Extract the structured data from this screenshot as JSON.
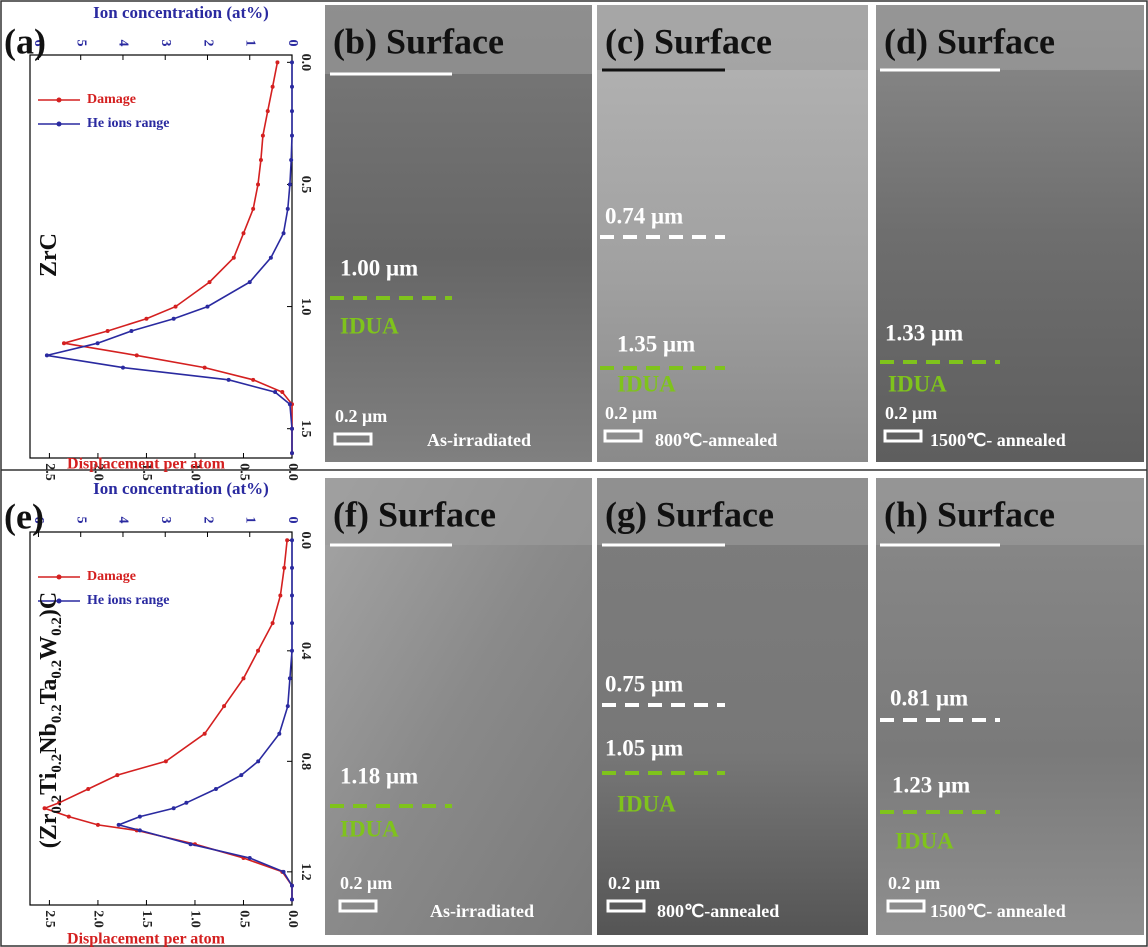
{
  "rows": [
    {
      "panel": "(a)",
      "material": [
        "ZrC"
      ]
    },
    {
      "panel": "(e)",
      "material": [
        "(Zr",
        "0.2",
        "Ti",
        "0.2",
        "Nb",
        "0.2",
        "Ta",
        "0.2",
        "W",
        "0.2",
        ")C"
      ]
    }
  ],
  "chart_data": [
    {
      "type": "line",
      "orientation": "vertical",
      "y2label": "Ion concentration (at%)",
      "ylabel": "Displacement per atom",
      "x": [
        0,
        0.1,
        0.2,
        0.3,
        0.4,
        0.5,
        0.6,
        0.7,
        0.8,
        0.9,
        1.0,
        1.05,
        1.1,
        1.15,
        1.2,
        1.25,
        1.3,
        1.35,
        1.4,
        1.5,
        1.6
      ],
      "xlim": [
        -0.03,
        1.62
      ],
      "xticks": [
        {
          "value": 0,
          "label": "0.0"
        },
        0.5,
        {
          "value": 1,
          "label": "1.0"
        },
        1.5
      ],
      "ylim": [
        2.7,
        0
      ],
      "yticks": [
        2.5,
        {
          "value": 2,
          "label": "2.0"
        },
        1.5,
        {
          "value": 1,
          "label": "1.0"
        },
        0.5,
        {
          "value": 0,
          "label": "0.0"
        }
      ],
      "y2lim": [
        6.2,
        0
      ],
      "y2ticks": [
        6,
        5,
        4,
        3,
        2,
        1,
        0
      ],
      "legend": "upper left",
      "series": [
        {
          "name": "Damage",
          "color": "#d42020",
          "values": [
            0.15,
            0.2,
            0.25,
            0.3,
            0.32,
            0.35,
            0.4,
            0.5,
            0.6,
            0.85,
            1.2,
            1.5,
            1.9,
            2.35,
            1.6,
            0.9,
            0.4,
            0.1,
            0,
            0,
            0
          ]
        },
        {
          "name": "He ions range",
          "color": "#2a2aa0",
          "axis": "y2",
          "values": [
            0,
            0,
            0,
            0,
            0.02,
            0.05,
            0.1,
            0.2,
            0.5,
            1.0,
            2.0,
            2.8,
            3.8,
            4.6,
            5.8,
            4.0,
            1.5,
            0.4,
            0.05,
            0,
            0
          ]
        }
      ]
    },
    {
      "type": "line",
      "orientation": "vertical",
      "y2label": "Ion concentration (at%)",
      "ylabel": "Displacement per atom",
      "x": [
        0,
        0.1,
        0.2,
        0.3,
        0.4,
        0.5,
        0.6,
        0.7,
        0.8,
        0.85,
        0.9,
        0.95,
        0.97,
        1.0,
        1.03,
        1.05,
        1.1,
        1.15,
        1.2,
        1.25,
        1.3
      ],
      "xlim": [
        -0.03,
        1.32
      ],
      "xticks": [
        {
          "value": 0,
          "label": "0.0"
        },
        0.4,
        0.8,
        1.2
      ],
      "ylim": [
        2.7,
        0
      ],
      "yticks": [
        2.5,
        {
          "value": 2,
          "label": "2.0"
        },
        1.5,
        {
          "value": 1,
          "label": "1.0"
        },
        0.5,
        {
          "value": 0,
          "label": "0.0"
        }
      ],
      "y2lim": [
        6.2,
        0
      ],
      "y2ticks": [
        6,
        5,
        4,
        3,
        2,
        1,
        0
      ],
      "legend": "upper left",
      "series": [
        {
          "name": "Damage",
          "color": "#d42020",
          "values": [
            0.05,
            0.08,
            0.12,
            0.2,
            0.35,
            0.5,
            0.7,
            0.9,
            1.3,
            1.8,
            2.1,
            2.4,
            2.55,
            2.3,
            2.0,
            1.6,
            1.0,
            0.5,
            0.1,
            0,
            0
          ]
        },
        {
          "name": "He ions range",
          "color": "#2a2aa0",
          "axis": "y2",
          "values": [
            0,
            0,
            0,
            0,
            0,
            0.05,
            0.1,
            0.3,
            0.8,
            1.2,
            1.8,
            2.5,
            2.8,
            3.6,
            4.1,
            3.6,
            2.4,
            1.0,
            0.2,
            0,
            0
          ]
        }
      ]
    }
  ],
  "panels": [
    {
      "title": "(b) Surface",
      "annotations": [
        "1.00 μm",
        "IDUA"
      ],
      "scale": "0.2 μm",
      "condition": "As-irradiated"
    },
    {
      "title": "(c) Surface",
      "annotations": [
        "0.74 μm",
        "1.35 μm",
        "IDUA"
      ],
      "scale": "0.2 μm",
      "condition": "800℃-annealed"
    },
    {
      "title": "(d) Surface",
      "annotations": [
        "1.33 μm",
        "IDUA"
      ],
      "scale": "0.2 μm",
      "condition": "1500℃- annealed"
    },
    {
      "title": "(f) Surface",
      "annotations": [
        "1.18 μm",
        "IDUA"
      ],
      "scale": "0.2 μm",
      "condition": "As-irradiated"
    },
    {
      "title": "(g) Surface",
      "annotations": [
        "0.75 μm",
        "1.05 μm",
        "IDUA"
      ],
      "scale": "0.2 μm",
      "condition": "800℃-annealed"
    },
    {
      "title": "(h) Surface",
      "annotations": [
        "0.81 μm",
        "1.23 μm",
        "IDUA"
      ],
      "scale": "0.2 μm",
      "condition": "1500℃- annealed"
    }
  ]
}
